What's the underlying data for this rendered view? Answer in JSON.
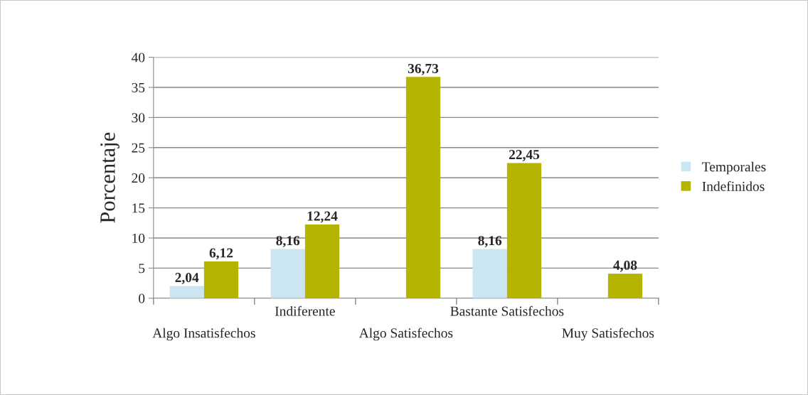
{
  "chart_data": {
    "type": "bar",
    "ylabel": "Porcentaje",
    "categories": [
      "Algo Insatisfechos",
      "Indiferente",
      "Algo Satisfechos",
      "Bastante Satisfechos",
      "Muy Satisfechos"
    ],
    "series": [
      {
        "name": "Temporales",
        "color": "#cce5f3",
        "values": [
          2.04,
          8.16,
          null,
          8.16,
          null
        ],
        "value_labels": [
          "2,04",
          "8,16",
          null,
          "8,16",
          null
        ]
      },
      {
        "name": "Indefinidos",
        "color": "#b5b400",
        "values": [
          6.12,
          12.24,
          36.73,
          22.45,
          4.08
        ],
        "value_labels": [
          "6,12",
          "12,24",
          "36,73",
          "22,45",
          "4,08"
        ]
      }
    ],
    "ylim": [
      0,
      40
    ],
    "yticks": [
      0,
      5,
      10,
      15,
      20,
      25,
      30,
      35,
      40
    ],
    "grid": "y",
    "legend": "right"
  }
}
